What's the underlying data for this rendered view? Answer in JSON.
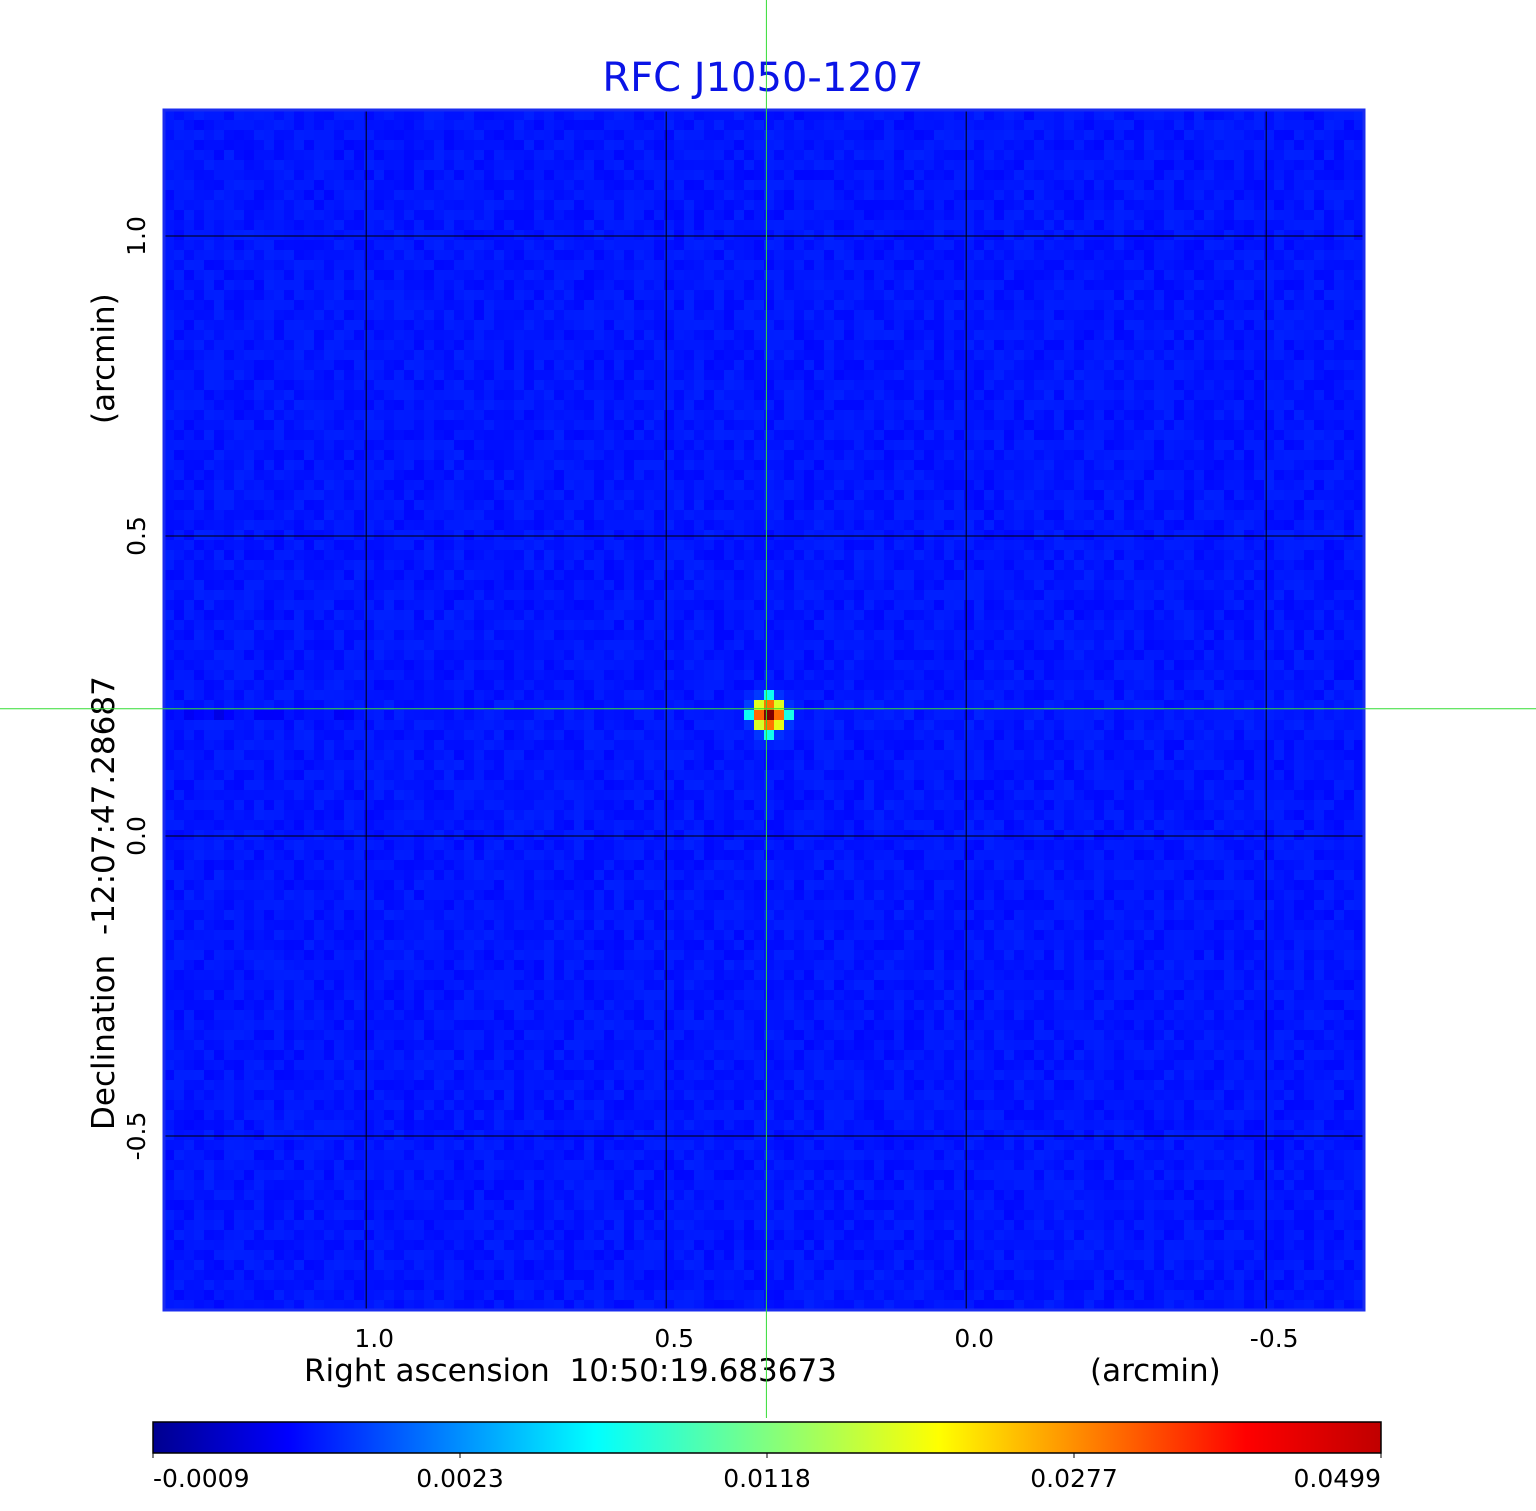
{
  "chart_data": {
    "type": "heatmap",
    "title": "RFC J1050-1207",
    "xlabel": "Right ascension  10:50:19.683673",
    "xunit": "(arcmin)",
    "ylabel": "Declination  -12:07:47.28687",
    "yunit": "(arcmin)",
    "xlim": [
      1.337,
      -0.663
    ],
    "ylim": [
      -0.79,
      1.21
    ],
    "xticks": [
      {
        "value": 1.0,
        "label": "1.0"
      },
      {
        "value": 0.5,
        "label": "0.5"
      },
      {
        "value": 0.0,
        "label": "0.0"
      },
      {
        "value": -0.5,
        "label": "-0.5"
      }
    ],
    "yticks": [
      {
        "value": 1.0,
        "label": "1.0"
      },
      {
        "value": 0.5,
        "label": "0.5"
      },
      {
        "value": 0.0,
        "label": "0.0"
      },
      {
        "value": -0.5,
        "label": "-0.5"
      }
    ],
    "grid": true,
    "colormap": "jet",
    "colorbar": {
      "placement": "bottom",
      "range": [
        -0.0009,
        0.0499
      ],
      "ticks": [
        "-0.0009",
        "0.0023",
        "0.0118",
        "0.0277",
        "0.0499"
      ]
    },
    "crosshair": {
      "x": 0.333,
      "y": 0.212,
      "color": "#33dd33"
    },
    "source": {
      "x": 0.333,
      "y": 0.212,
      "peak": 0.0499
    },
    "background_level": 0.0002
  },
  "colors": {
    "title": "#0a14e6",
    "frame": "#1a2cf0",
    "grid": "#000000"
  }
}
